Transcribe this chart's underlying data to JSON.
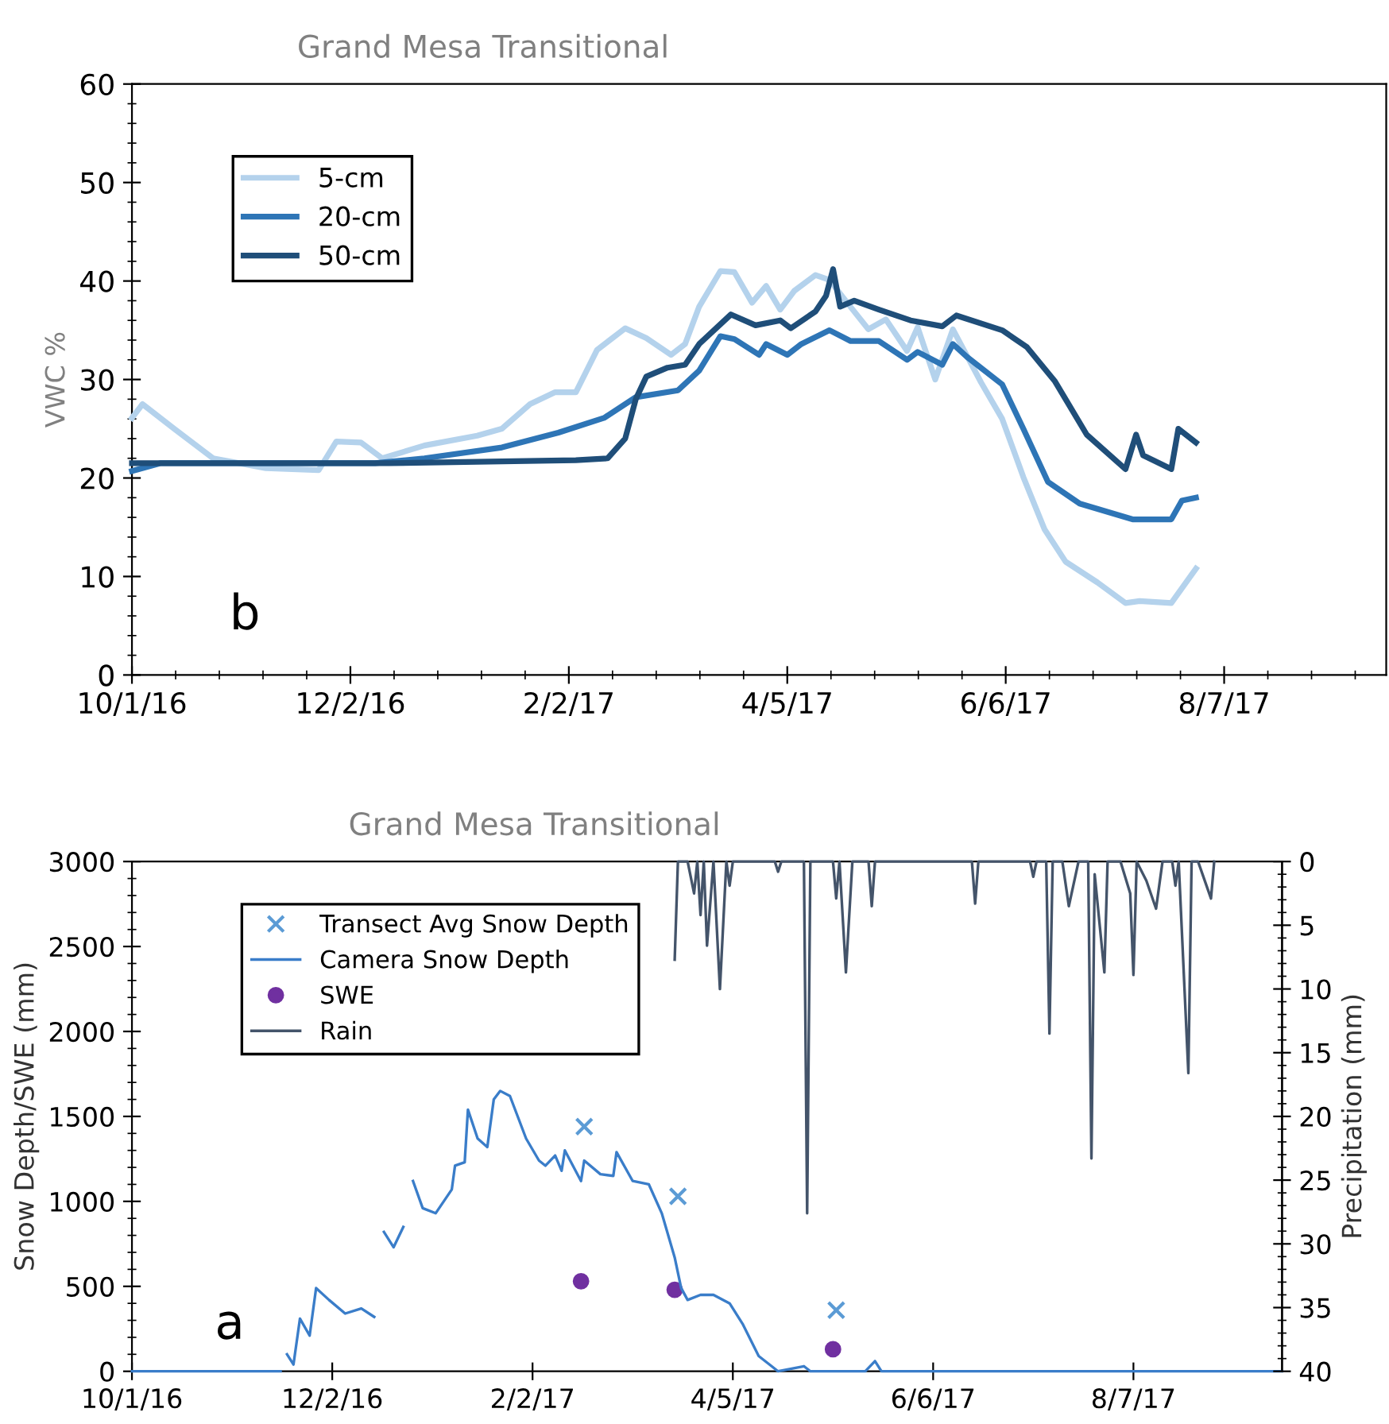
{
  "chart_data": [
    {
      "type": "line",
      "title": "Grand Mesa Transitional",
      "ylabel": "VWC %",
      "annotations": [
        "b"
      ],
      "legend": "top left",
      "xlim": [
        "2016-10-01",
        "2017-09-22"
      ],
      "xticks": [
        {
          "value": "2016-10-01",
          "label": "10/1/16"
        },
        {
          "value": "2016-12-02",
          "label": "12/2/16"
        },
        {
          "value": "2017-02-02",
          "label": "2/2/17"
        },
        {
          "value": "2017-04-05",
          "label": "4/5/17"
        },
        {
          "value": "2017-06-06",
          "label": "6/6/17"
        },
        {
          "value": "2017-08-07",
          "label": "8/7/17"
        }
      ],
      "ylim": [
        0,
        60
      ],
      "yticks": [
        0,
        10,
        20,
        30,
        40,
        50,
        60
      ],
      "series": [
        {
          "name": "5-cm",
          "color": "#b4d2ec",
          "x": [
            "2016-10-01",
            "2016-10-04",
            "2016-10-13",
            "2016-10-24",
            "2016-11-08",
            "2016-11-23",
            "2016-11-28",
            "2016-12-05",
            "2016-12-11",
            "2016-12-23",
            "2017-01-07",
            "2017-01-14",
            "2017-01-22",
            "2017-01-29",
            "2017-02-04",
            "2017-02-10",
            "2017-02-18",
            "2017-02-24",
            "2017-03-03",
            "2017-03-07",
            "2017-03-11",
            "2017-03-17",
            "2017-03-21",
            "2017-03-26",
            "2017-03-30",
            "2017-04-03",
            "2017-04-07",
            "2017-04-13",
            "2017-04-17",
            "2017-04-22",
            "2017-04-28",
            "2017-05-03",
            "2017-05-09",
            "2017-05-12",
            "2017-05-17",
            "2017-05-22",
            "2017-05-30",
            "2017-06-05",
            "2017-06-11",
            "2017-06-17",
            "2017-06-23",
            "2017-07-02",
            "2017-07-10",
            "2017-07-14",
            "2017-07-23",
            "2017-07-30"
          ],
          "values": [
            26.1,
            27.5,
            25,
            22,
            21,
            20.8,
            23.7,
            23.6,
            22,
            23.3,
            24.3,
            25,
            27.5,
            28.7,
            28.7,
            33,
            35.2,
            34.2,
            32.5,
            33.6,
            37.4,
            41,
            40.9,
            37.8,
            39.5,
            37.1,
            39,
            40.6,
            40.1,
            37.8,
            35.1,
            36.1,
            32.9,
            35.3,
            30,
            35.1,
            29.7,
            26,
            20.1,
            14.8,
            11.5,
            9.4,
            7.3,
            7.5,
            7.3,
            10.8
          ]
        },
        {
          "name": "20-cm",
          "color": "#2e75b6",
          "x": [
            "2016-10-01",
            "2016-10-09",
            "2016-12-09",
            "2016-12-23",
            "2017-01-14",
            "2017-01-30",
            "2017-02-12",
            "2017-02-21",
            "2017-03-05",
            "2017-03-11",
            "2017-03-17",
            "2017-03-21",
            "2017-03-28",
            "2017-03-30",
            "2017-04-05",
            "2017-04-09",
            "2017-04-17",
            "2017-04-23",
            "2017-05-01",
            "2017-05-09",
            "2017-05-12",
            "2017-05-19",
            "2017-05-22",
            "2017-05-26",
            "2017-06-05",
            "2017-06-11",
            "2017-06-18",
            "2017-06-27",
            "2017-07-12",
            "2017-07-23",
            "2017-07-26",
            "2017-07-30"
          ],
          "values": [
            20.7,
            21.5,
            21.5,
            22,
            23.1,
            24.6,
            26.1,
            28.2,
            28.9,
            30.9,
            34.4,
            34.1,
            32.5,
            33.6,
            32.5,
            33.6,
            35,
            33.9,
            33.9,
            32,
            32.8,
            31.5,
            33.6,
            32.3,
            29.5,
            25,
            19.6,
            17.4,
            15.8,
            15.8,
            17.7,
            18
          ]
        },
        {
          "name": "50-cm",
          "color": "#1f4e79",
          "x": [
            "2016-10-01",
            "2016-12-13",
            "2017-02-04",
            "2017-02-13",
            "2017-02-18",
            "2017-02-21",
            "2017-02-24",
            "2017-03-02",
            "2017-03-07",
            "2017-03-11",
            "2017-03-20",
            "2017-03-27",
            "2017-04-03",
            "2017-04-06",
            "2017-04-13",
            "2017-04-16",
            "2017-04-18",
            "2017-04-20",
            "2017-04-24",
            "2017-05-01",
            "2017-05-10",
            "2017-05-19",
            "2017-05-23",
            "2017-06-05",
            "2017-06-12",
            "2017-06-20",
            "2017-06-29",
            "2017-07-10",
            "2017-07-13",
            "2017-07-15",
            "2017-07-23",
            "2017-07-25",
            "2017-07-30"
          ],
          "values": [
            21.5,
            21.5,
            21.8,
            22,
            24,
            28,
            30.3,
            31.2,
            31.5,
            33.6,
            36.6,
            35.5,
            36,
            35.2,
            36.9,
            38.5,
            41.2,
            37.4,
            38,
            37.1,
            36,
            35.4,
            36.5,
            35,
            33.3,
            29.8,
            24.4,
            20.9,
            24.4,
            22.3,
            20.9,
            25,
            23.6
          ]
        }
      ]
    },
    {
      "type": "line",
      "title": "Grand Mesa Transitional",
      "ylabel": "Snow Depth/SWE (mm)",
      "y2label": "Precipitation (mm)",
      "annotations": [
        "a"
      ],
      "legend": "top left",
      "xlim": [
        "2016-10-01",
        "2017-09-22"
      ],
      "xticks": [
        {
          "value": "2016-10-01",
          "label": "10/1/16"
        },
        {
          "value": "2016-12-02",
          "label": "12/2/16"
        },
        {
          "value": "2017-02-02",
          "label": "2/2/17"
        },
        {
          "value": "2017-04-05",
          "label": "4/5/17"
        },
        {
          "value": "2017-06-06",
          "label": "6/6/17"
        },
        {
          "value": "2017-08-07",
          "label": "8/7/17"
        }
      ],
      "ylim": [
        0,
        3000
      ],
      "yticks": [
        0,
        500,
        1000,
        1500,
        2000,
        2500,
        3000
      ],
      "y2lim": [
        40,
        0
      ],
      "y2ticks": [
        0,
        5,
        10,
        15,
        20,
        25,
        30,
        35,
        40
      ],
      "series": [
        {
          "name": "Transect Avg Snow Depth",
          "type": "scatter",
          "marker": "cross",
          "color": "#5b9bd5",
          "x": [
            "2017-02-18",
            "2017-03-19",
            "2017-05-07"
          ],
          "values": [
            1440,
            1030,
            360
          ]
        },
        {
          "name": "Camera Snow Depth",
          "type": "line",
          "color": "#3a7dc9",
          "x": [
            "2016-10-01",
            "2016-11-16",
            "2016-11-17",
            "2016-11-18",
            "2016-11-20",
            "2016-11-22",
            "2016-11-25",
            "2016-11-27",
            "2016-12-01",
            "2016-12-06",
            "2016-12-11",
            "2016-12-15",
            "2016-12-16",
            "2016-12-18",
            "2016-12-21",
            "2016-12-24",
            "2016-12-25",
            "2016-12-27",
            "2016-12-30",
            "2017-01-03",
            "2017-01-08",
            "2017-01-09",
            "2017-01-12",
            "2017-01-13",
            "2017-01-16",
            "2017-01-19",
            "2017-01-21",
            "2017-01-23",
            "2017-01-26",
            "2017-01-31",
            "2017-02-04",
            "2017-02-06",
            "2017-02-09",
            "2017-02-11",
            "2017-02-12",
            "2017-02-17",
            "2017-02-18",
            "2017-02-23",
            "2017-02-27",
            "2017-02-28",
            "2017-03-05",
            "2017-03-10",
            "2017-03-14",
            "2017-03-18",
            "2017-03-20",
            "2017-03-22",
            "2017-03-26",
            "2017-03-30",
            "2017-04-04",
            "2017-04-08",
            "2017-04-13",
            "2017-04-17",
            "2017-04-19",
            "2017-04-27",
            "2017-04-29",
            "2017-05-16",
            "2017-05-19",
            "2017-05-21",
            "2017-09-22"
          ],
          "values": [
            0,
            0,
            null,
            100,
            40,
            310,
            210,
            490,
            420,
            340,
            370,
            320,
            null,
            820,
            730,
            850,
            null,
            1120,
            960,
            930,
            1070,
            1210,
            1230,
            1540,
            1370,
            1320,
            1600,
            1650,
            1620,
            1370,
            1240,
            1210,
            1270,
            1180,
            1300,
            1120,
            1240,
            1160,
            1150,
            1290,
            1120,
            1100,
            930,
            670,
            490,
            420,
            450,
            450,
            400,
            280,
            90,
            30,
            0,
            30,
            0,
            0,
            60,
            0,
            0
          ]
        },
        {
          "name": "SWE",
          "type": "scatter",
          "marker": "circle",
          "color": "#7030a0",
          "x": [
            "2017-02-17",
            "2017-03-18",
            "2017-05-06"
          ],
          "values": [
            530,
            480,
            130
          ]
        },
        {
          "name": "Rain",
          "type": "line",
          "axis": "y2",
          "color": "#44546a",
          "x": [
            "2017-03-18",
            "2017-03-19",
            "2017-03-22",
            "2017-03-24",
            "2017-03-25",
            "2017-03-26",
            "2017-03-27",
            "2017-03-28",
            "2017-03-30",
            "2017-04-01",
            "2017-04-03",
            "2017-04-04",
            "2017-04-05",
            "2017-04-18",
            "2017-04-19",
            "2017-04-20",
            "2017-04-27",
            "2017-04-28",
            "2017-04-29",
            "2017-05-06",
            "2017-05-07",
            "2017-05-08",
            "2017-05-10",
            "2017-05-12",
            "2017-05-17",
            "2017-05-18",
            "2017-05-19",
            "2017-06-18",
            "2017-06-19",
            "2017-06-20",
            "2017-07-06",
            "2017-07-07",
            "2017-07-08",
            "2017-07-11",
            "2017-07-12",
            "2017-07-13",
            "2017-07-16",
            "2017-07-18",
            "2017-07-21",
            "2017-07-24",
            "2017-07-25",
            "2017-07-26",
            "2017-07-29",
            "2017-07-30",
            "2017-08-03",
            "2017-08-06",
            "2017-08-07",
            "2017-08-08",
            "2017-08-11",
            "2017-08-14",
            "2017-08-16",
            "2017-08-19",
            "2017-08-20",
            "2017-08-21",
            "2017-08-24",
            "2017-08-25",
            "2017-08-27",
            "2017-08-31",
            "2017-09-01"
          ],
          "values": [
            7.7,
            0,
            0,
            2.5,
            0,
            4.2,
            0,
            6.6,
            0,
            10,
            0,
            1.9,
            0,
            0,
            0.8,
            0,
            0,
            27.6,
            0,
            0,
            2.9,
            0,
            8.7,
            0,
            0,
            3.5,
            0,
            0,
            3.3,
            0,
            0,
            1.2,
            0,
            0,
            13.5,
            0,
            0,
            3.5,
            0,
            0,
            23.3,
            1,
            8.7,
            0,
            0,
            2.5,
            8.9,
            0,
            1.5,
            3.7,
            0,
            0,
            1.9,
            0,
            16.6,
            0,
            0,
            2.9,
            0
          ]
        }
      ]
    }
  ]
}
